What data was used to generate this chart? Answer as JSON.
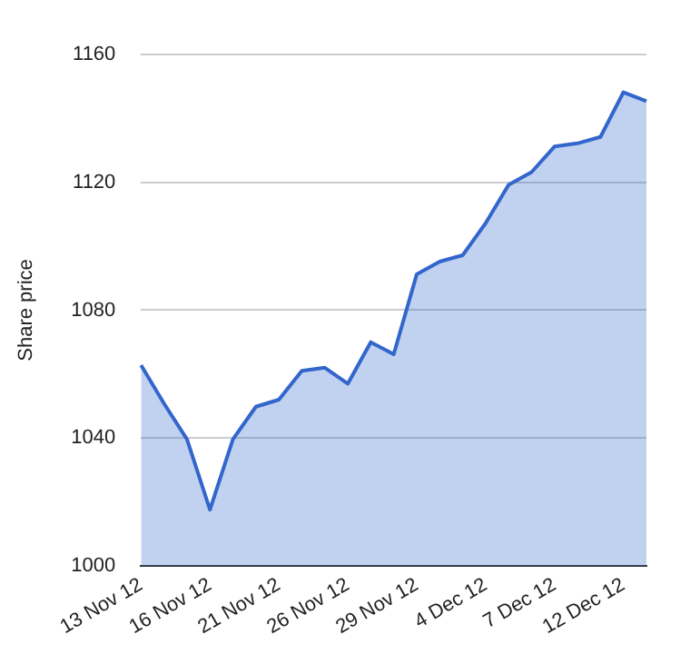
{
  "chart_data": {
    "type": "area",
    "ylabel": "Share price",
    "categories": [
      "13 Nov 12",
      null,
      null,
      "16 Nov 12",
      null,
      null,
      "21 Nov 12",
      null,
      null,
      "26 Nov 12",
      null,
      null,
      "29 Nov 12",
      null,
      null,
      "4 Dec 12",
      null,
      null,
      "7 Dec 12",
      null,
      null,
      "12 Dec 12",
      null
    ],
    "series": [
      {
        "color": "#3366cc",
        "values": [
          1062.8,
          1050.8,
          1039.6,
          1017.6,
          1039.6,
          1049.8,
          1052,
          1061,
          1062,
          1057,
          1070,
          1066.2,
          1091.2,
          1095.2,
          1097.2,
          1107.2,
          1119.2,
          1123.2,
          1131.2,
          1132.2,
          1134.2,
          1148.2,
          1145.4
        ]
      }
    ],
    "ylim": [
      1000,
      1160
    ],
    "yticks": [
      1000,
      1040,
      1080,
      1120,
      1160
    ],
    "grid": "y",
    "legend": false
  }
}
